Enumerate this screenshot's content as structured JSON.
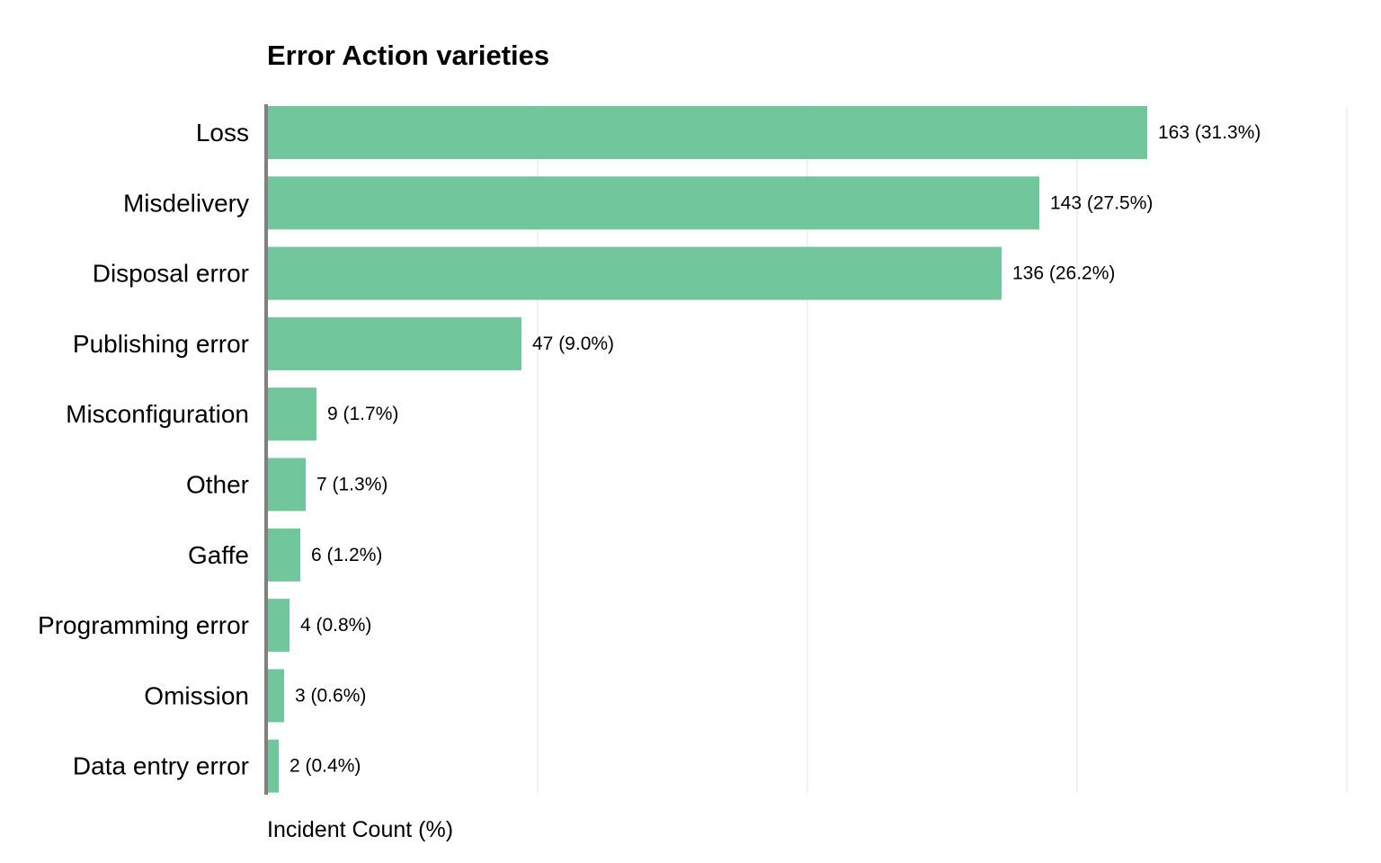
{
  "chart_data": {
    "type": "bar",
    "orientation": "horizontal",
    "title": "Error Action varieties",
    "xlabel": "Incident Count (%)",
    "ylabel": "",
    "categories": [
      "Loss",
      "Misdelivery",
      "Disposal error",
      "Publishing error",
      "Misconfiguration",
      "Other",
      "Gaffe",
      "Programming error",
      "Omission",
      "Data entry error"
    ],
    "values": [
      163,
      143,
      136,
      47,
      9,
      7,
      6,
      4,
      3,
      2
    ],
    "data_labels": [
      "163 (31.3%)",
      "143 (27.5%)",
      "136 (26.2%)",
      "47 (9.0%)",
      "9 (1.7%)",
      "7 (1.3%)",
      "6 (1.2%)",
      "4 (0.8%)",
      "3 (0.6%)",
      "2 (0.4%)"
    ],
    "xlim": [
      0,
      200
    ],
    "gridlines": [
      50,
      100,
      150,
      200
    ],
    "grid": true,
    "legend": "none",
    "colors": {
      "bar": "#72c69b",
      "axis": "#808080",
      "grid": "#e6e6e6",
      "text": "#000000"
    }
  }
}
